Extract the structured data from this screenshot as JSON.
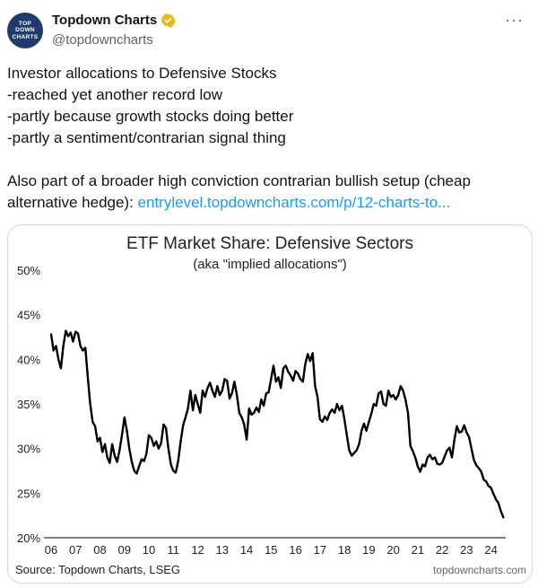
{
  "post": {
    "avatar_lines": [
      "TOP",
      "DOWN",
      "CHARTS"
    ],
    "display_name": "Topdown Charts",
    "handle": "@topdowncharts",
    "more_label": "···",
    "text_lines": [
      "Investor allocations to Defensive Stocks",
      "-reached yet another record low",
      "-partly because growth stocks doing better",
      "-partly a sentiment/contrarian signal thing",
      "",
      "Also part of a broader high conviction contrarian bullish setup (cheap alternative hedge): "
    ],
    "link_text": "entrylevel.topdowncharts.com/p/12-charts-to..."
  },
  "colors": {
    "accent_link": "#1d9bf0",
    "verified_badge": "#e8b923",
    "line": "#000000",
    "secondary_text": "#536471"
  },
  "chart_data": {
    "type": "line",
    "title": "ETF Market Share: Defensive Sectors",
    "subtitle": "(aka \"implied allocations\")",
    "ylim": [
      20,
      50
    ],
    "y_ticks": [
      {
        "value": 50,
        "label": "50%"
      },
      {
        "value": 45,
        "label": "45%"
      },
      {
        "value": 40,
        "label": "40%"
      },
      {
        "value": 35,
        "label": "35%"
      },
      {
        "value": 30,
        "label": "30%"
      },
      {
        "value": 25,
        "label": "25%"
      },
      {
        "value": 20,
        "label": "20%"
      }
    ],
    "xlim": [
      2006,
      2024.6
    ],
    "x_ticks": [
      {
        "value": 2006,
        "label": "06"
      },
      {
        "value": 2007,
        "label": "07"
      },
      {
        "value": 2008,
        "label": "08"
      },
      {
        "value": 2009,
        "label": "09"
      },
      {
        "value": 2010,
        "label": "10"
      },
      {
        "value": 2011,
        "label": "11"
      },
      {
        "value": 2012,
        "label": "12"
      },
      {
        "value": 2013,
        "label": "13"
      },
      {
        "value": 2014,
        "label": "14"
      },
      {
        "value": 2015,
        "label": "15"
      },
      {
        "value": 2016,
        "label": "16"
      },
      {
        "value": 2017,
        "label": "17"
      },
      {
        "value": 2018,
        "label": "18"
      },
      {
        "value": 2019,
        "label": "19"
      },
      {
        "value": 2020,
        "label": "20"
      },
      {
        "value": 2021,
        "label": "21"
      },
      {
        "value": 2022,
        "label": "22"
      },
      {
        "value": 2023,
        "label": "23"
      },
      {
        "value": 2024,
        "label": "24"
      }
    ],
    "source": "Source: Topdown Charts, LSEG",
    "watermark": "topdowncharts.com",
    "series": [
      {
        "name": "Defensive sectors ETF market share",
        "x": [
          2006.0,
          2006.1,
          2006.2,
          2006.3,
          2006.4,
          2006.5,
          2006.6,
          2006.7,
          2006.8,
          2006.9,
          2007.0,
          2007.1,
          2007.2,
          2007.3,
          2007.4,
          2007.5,
          2007.6,
          2007.7,
          2007.8,
          2007.9,
          2008.0,
          2008.1,
          2008.2,
          2008.3,
          2008.4,
          2008.5,
          2008.6,
          2008.7,
          2008.8,
          2008.9,
          2009.0,
          2009.1,
          2009.2,
          2009.3,
          2009.4,
          2009.5,
          2009.6,
          2009.7,
          2009.8,
          2009.9,
          2010.0,
          2010.1,
          2010.2,
          2010.3,
          2010.4,
          2010.5,
          2010.6,
          2010.7,
          2010.8,
          2010.9,
          2011.0,
          2011.1,
          2011.2,
          2011.3,
          2011.4,
          2011.5,
          2011.6,
          2011.7,
          2011.8,
          2011.9,
          2012.0,
          2012.1,
          2012.2,
          2012.3,
          2012.4,
          2012.5,
          2012.6,
          2012.7,
          2012.8,
          2012.9,
          2013.0,
          2013.1,
          2013.2,
          2013.3,
          2013.4,
          2013.5,
          2013.6,
          2013.7,
          2013.8,
          2013.9,
          2014.0,
          2014.1,
          2014.2,
          2014.3,
          2014.4,
          2014.5,
          2014.6,
          2014.7,
          2014.8,
          2014.9,
          2015.0,
          2015.1,
          2015.2,
          2015.3,
          2015.4,
          2015.5,
          2015.6,
          2015.7,
          2015.8,
          2015.9,
          2016.0,
          2016.1,
          2016.2,
          2016.3,
          2016.4,
          2016.5,
          2016.6,
          2016.7,
          2016.8,
          2016.9,
          2017.0,
          2017.1,
          2017.2,
          2017.3,
          2017.4,
          2017.5,
          2017.6,
          2017.7,
          2017.8,
          2017.9,
          2018.0,
          2018.1,
          2018.2,
          2018.3,
          2018.4,
          2018.5,
          2018.6,
          2018.7,
          2018.8,
          2018.9,
          2019.0,
          2019.1,
          2019.2,
          2019.3,
          2019.4,
          2019.5,
          2019.6,
          2019.7,
          2019.8,
          2019.9,
          2020.0,
          2020.1,
          2020.2,
          2020.3,
          2020.4,
          2020.5,
          2020.6,
          2020.7,
          2020.8,
          2020.9,
          2021.0,
          2021.1,
          2021.2,
          2021.3,
          2021.4,
          2021.5,
          2021.6,
          2021.7,
          2021.8,
          2021.9,
          2022.0,
          2022.1,
          2022.2,
          2022.3,
          2022.4,
          2022.5,
          2022.6,
          2022.7,
          2022.8,
          2022.9,
          2023.0,
          2023.1,
          2023.2,
          2023.3,
          2023.4,
          2023.5,
          2023.6,
          2023.7,
          2023.8,
          2023.9,
          2024.0,
          2024.1,
          2024.2,
          2024.3,
          2024.4,
          2024.5
        ],
        "y": [
          42.8,
          41.0,
          41.5,
          40.0,
          39.0,
          41.5,
          43.2,
          42.6,
          43.0,
          42.0,
          43.1,
          42.9,
          41.5,
          41.0,
          41.3,
          38.0,
          35.0,
          33.0,
          32.5,
          30.8,
          31.2,
          29.6,
          30.5,
          29.0,
          28.4,
          30.5,
          29.2,
          28.5,
          29.8,
          31.5,
          33.5,
          32.0,
          30.0,
          28.5,
          27.5,
          27.2,
          28.0,
          28.8,
          28.6,
          29.4,
          31.5,
          31.2,
          30.3,
          30.8,
          30.0,
          30.6,
          32.7,
          32.3,
          30.0,
          28.2,
          27.5,
          27.3,
          28.6,
          30.8,
          32.6,
          33.5,
          34.5,
          36.5,
          34.3,
          36.0,
          35.0,
          34.0,
          36.5,
          35.8,
          36.8,
          37.4,
          36.5,
          35.8,
          37.0,
          36.0,
          36.5,
          37.8,
          37.6,
          35.6,
          36.2,
          37.5,
          36.0,
          34.0,
          33.5,
          32.7,
          31.0,
          34.5,
          33.8,
          34.0,
          34.6,
          34.1,
          35.5,
          34.8,
          36.2,
          36.3,
          37.8,
          39.3,
          37.5,
          38.0,
          36.8,
          39.0,
          39.3,
          38.6,
          38.2,
          37.6,
          38.7,
          38.4,
          37.8,
          37.5,
          39.5,
          40.6,
          39.8,
          40.7,
          37.0,
          35.8,
          33.3,
          33.0,
          33.6,
          33.2,
          34.0,
          34.4,
          34.0,
          35.0,
          34.3,
          34.8,
          33.3,
          31.5,
          29.8,
          29.2,
          29.5,
          29.8,
          30.5,
          32.0,
          32.8,
          32.0,
          33.0,
          33.9,
          35.0,
          34.8,
          36.2,
          36.4,
          35.0,
          34.8,
          36.5,
          35.8,
          36.0,
          35.5,
          36.0,
          37.0,
          36.5,
          35.5,
          34.0,
          30.3,
          29.7,
          29.0,
          28.0,
          27.4,
          28.2,
          28.0,
          29.0,
          29.3,
          28.8,
          29.0,
          28.3,
          28.2,
          28.4,
          29.1,
          29.8,
          30.1,
          29.0,
          31.0,
          32.5,
          31.8,
          31.9,
          32.6,
          31.8,
          31.3,
          30.0,
          28.7,
          28.1,
          27.8,
          27.4,
          26.5,
          26.3,
          25.8,
          25.6,
          24.9,
          24.3,
          23.9,
          23.0,
          22.3
        ]
      }
    ]
  }
}
